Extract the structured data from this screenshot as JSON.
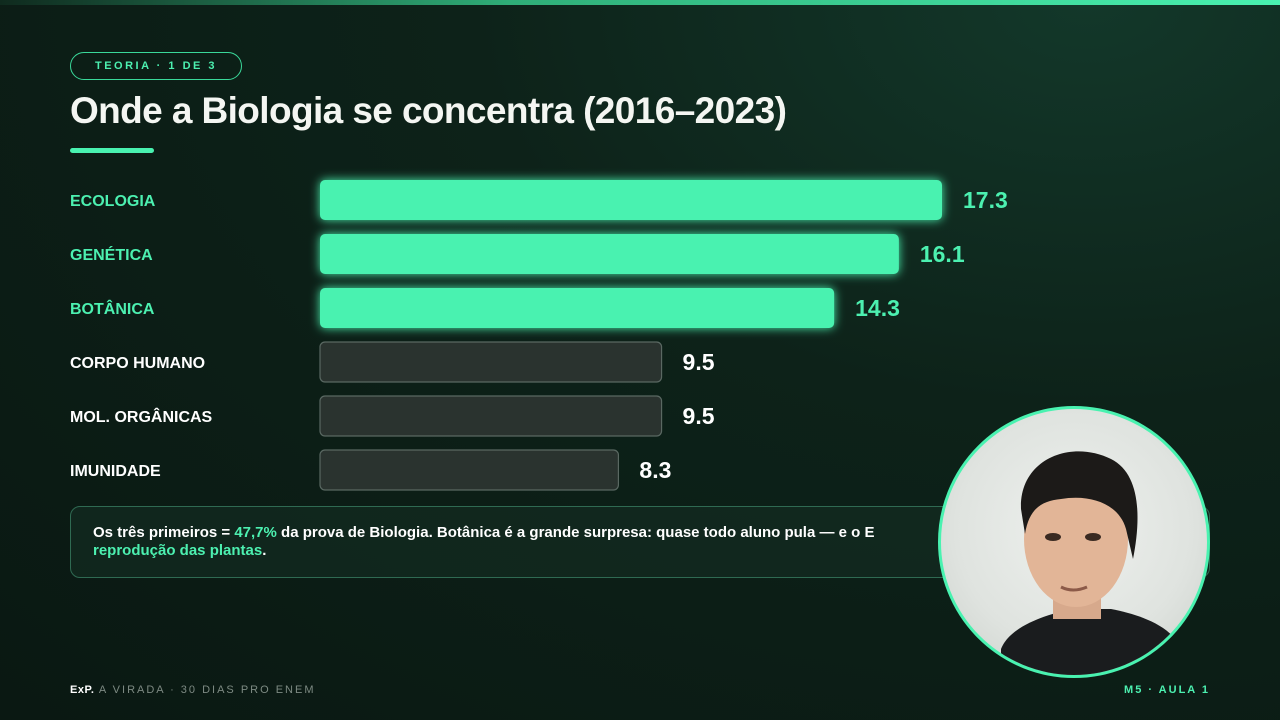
{
  "header": {
    "badge": "TEORIA · 1 DE 3",
    "title": "Onde a Biologia se concentra (2016–2023)"
  },
  "chart_data": {
    "type": "bar",
    "orientation": "horizontal",
    "title": "Onde a Biologia se concentra (2016–2023)",
    "categories": [
      "ECOLOGIA",
      "GENÉTICA",
      "BOTÂNICA",
      "CORPO HUMANO",
      "MOL. ORGÂNICAS",
      "IMUNIDADE"
    ],
    "values": [
      17.3,
      16.1,
      14.3,
      9.5,
      9.5,
      8.3
    ],
    "value_labels": [
      "17.3",
      "16.1",
      "14.3",
      "9.5",
      "9.5",
      "8.3"
    ],
    "highlighted": [
      true,
      true,
      true,
      false,
      false,
      false
    ],
    "xlim": [
      0,
      17.3
    ],
    "grid": false,
    "colors": {
      "highlight": "#49f2b0",
      "normal": "#2a332f",
      "normal_border": "#5a6862",
      "label_highlight": "#4cf0b0",
      "label_normal": "#ffffff"
    }
  },
  "callout": {
    "t1": "Os três primeiros = ",
    "h1": "47,7%",
    "t2": " da prova de Biologia. Botânica é a grande surpresa: quase todo aluno pula — e o E",
    "h2": "reprodução das plantas",
    "t3": "."
  },
  "footer": {
    "brand": "ExP.",
    "series": " A VIRADA · 30 DIAS PRO ENEM",
    "lesson": "M5 · AULA 1"
  }
}
